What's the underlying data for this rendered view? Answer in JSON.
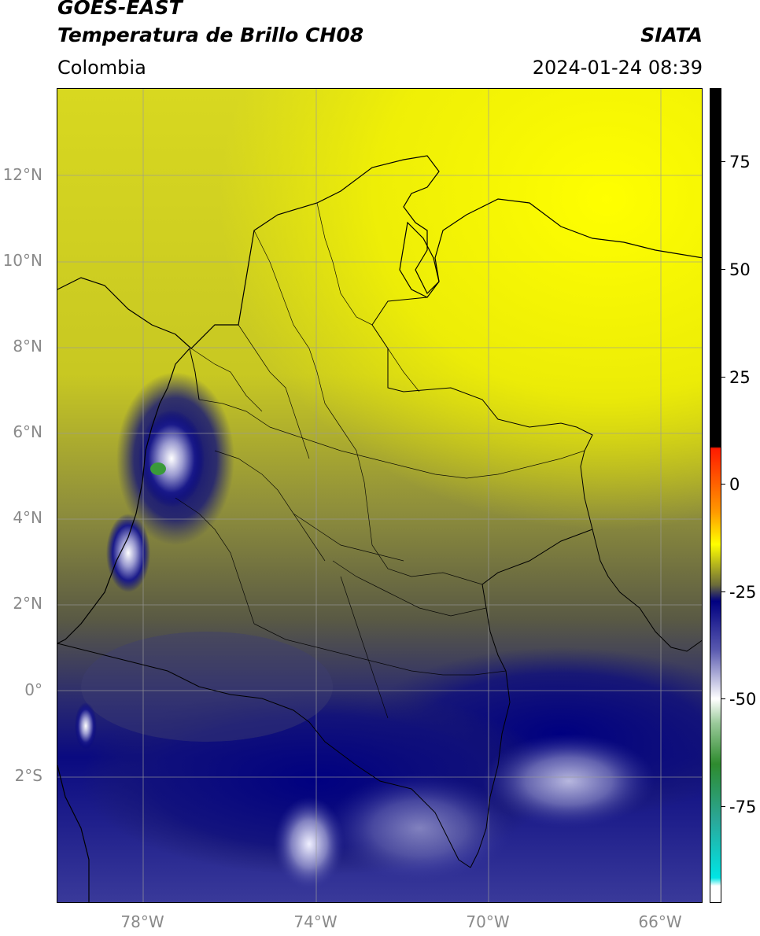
{
  "header": {
    "satellite": "GOES-EAST",
    "product": "Temperatura de Brillo CH08",
    "brand": "SIATA",
    "region": "Colombia",
    "datetime": "2024-01-24 08:39"
  },
  "map": {
    "lat_labels": [
      "12°N",
      "10°N",
      "8°N",
      "6°N",
      "4°N",
      "2°N",
      "0°",
      "2°S"
    ],
    "lon_labels": [
      "78°W",
      "74°W",
      "70°W",
      "66°W"
    ]
  },
  "colorbar": {
    "ticks": [
      "75",
      "50",
      "25",
      "0",
      "-25",
      "-50",
      "-75"
    ],
    "colors": {
      "black": "#000000",
      "red": "#ff1a00",
      "orange": "#ff9900",
      "yellow": "#ffff00",
      "olive": "#6b6b3a",
      "navy": "#000080",
      "white": "#ffffff",
      "green": "#2e8b2e",
      "cyan": "#00e5e5"
    }
  }
}
